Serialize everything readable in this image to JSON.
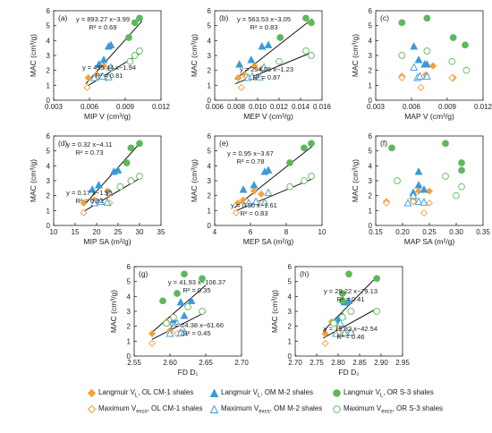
{
  "colors": {
    "orange": "#F2A23A",
    "blue": "#3A9AD9",
    "green": "#5CB85C",
    "line": "#111111",
    "axis": "#222222"
  },
  "legend": [
    {
      "label": "Langmuir V",
      "sub": "L",
      "suffix": ", OL CM-1 shales",
      "marker": "diamond",
      "color": "#F2A23A",
      "filled": true
    },
    {
      "label": "Langmuir V",
      "sub": "L",
      "suffix": ", OM M-2 shales",
      "marker": "triangle",
      "color": "#3A9AD9",
      "filled": true
    },
    {
      "label": "Langmuir V",
      "sub": "L",
      "suffix": ", OR S-3 shales",
      "marker": "circle",
      "color": "#5CB85C",
      "filled": true
    },
    {
      "label": "Maximum V",
      "sub": "excs",
      "suffix": ", OL CM-1 shales",
      "marker": "diamond",
      "color": "#F2A23A",
      "filled": false
    },
    {
      "label": "Maximum V",
      "sub": "excs",
      "suffix": ", OM M-2 shales",
      "marker": "triangle",
      "color": "#3A9AD9",
      "filled": false
    },
    {
      "label": "Maximum V",
      "sub": "excs",
      "suffix": ", OR S-3 shales",
      "marker": "circle",
      "color": "#5CB85C",
      "filled": false
    }
  ],
  "chart_data": [
    {
      "type": "scatter",
      "panel": "(a)",
      "xlabel": "MIP V (cm³/g)",
      "ylabel": "MAC (cm³/g)",
      "xlim": [
        0.003,
        0.012
      ],
      "ylim": [
        0,
        6
      ],
      "xticks": [
        "0.003",
        "0.006",
        "0.009",
        "0.012"
      ],
      "yticks": [
        "0",
        "1",
        "2",
        "3",
        "4",
        "5",
        "6"
      ],
      "series": [
        {
          "key": "L-CM1",
          "x": [
            0.0059,
            0.0066,
            0.0072,
            0.0078
          ],
          "y": [
            1.5,
            1.7,
            2.3,
            2.1
          ]
        },
        {
          "key": "L-M2",
          "x": [
            0.0068,
            0.0072,
            0.0076,
            0.0078
          ],
          "y": [
            2.4,
            2.7,
            3.6,
            3.7
          ]
        },
        {
          "key": "L-S3",
          "x": [
            0.0093,
            0.0098,
            0.0102
          ],
          "y": [
            4.2,
            5.2,
            5.5
          ]
        },
        {
          "key": "M-CM1",
          "x": [
            0.0058,
            0.0067,
            0.0074
          ],
          "y": [
            0.85,
            1.6,
            1.5
          ]
        },
        {
          "key": "M-M2",
          "x": [
            0.0064,
            0.0071,
            0.0076,
            0.0078
          ],
          "y": [
            1.5,
            1.6,
            1.55,
            2.2
          ]
        },
        {
          "key": "M-S3",
          "x": [
            0.0094,
            0.0098,
            0.0102
          ],
          "y": [
            2.6,
            3.0,
            3.3
          ]
        }
      ],
      "fits": [
        {
          "eq": "y = 893.27 x−3.99",
          "r2": "R² = 0.69",
          "x": [
            0.0057,
            0.0104
          ],
          "y": [
            1.102,
            5.3
          ]
        },
        {
          "eq": "y = 495.44 x−1.94",
          "r2": "R² = 0.81",
          "x": [
            0.0057,
            0.0104
          ],
          "y": [
            0.884,
            3.213
          ]
        }
      ]
    },
    {
      "type": "scatter",
      "panel": "(b)",
      "xlabel": "MEP V (cm³/g)",
      "ylabel": "MAC (cm³/g)",
      "xlim": [
        0.006,
        0.016
      ],
      "ylim": [
        0,
        6
      ],
      "xticks": [
        "0.006",
        "0.008",
        "0.010",
        "0.012",
        "0.014",
        "0.016"
      ],
      "yticks": [
        "0",
        "1",
        "2",
        "3",
        "4",
        "5",
        "6"
      ],
      "series": [
        {
          "key": "L-CM1",
          "x": [
            0.0082,
            0.0088,
            0.0097,
            0.0104
          ],
          "y": [
            1.5,
            1.7,
            2.3,
            2.1
          ]
        },
        {
          "key": "L-M2",
          "x": [
            0.0083,
            0.0094,
            0.0104,
            0.011
          ],
          "y": [
            2.4,
            2.7,
            3.6,
            3.7
          ]
        },
        {
          "key": "L-S3",
          "x": [
            0.0121,
            0.0145,
            0.015
          ],
          "y": [
            4.2,
            5.5,
            5.2
          ]
        },
        {
          "key": "M-CM1",
          "x": [
            0.0085,
            0.009,
            0.0097
          ],
          "y": [
            0.85,
            1.6,
            1.5
          ]
        },
        {
          "key": "M-M2",
          "x": [
            0.0091,
            0.0095,
            0.0102,
            0.0106
          ],
          "y": [
            1.5,
            1.6,
            1.55,
            2.2
          ]
        },
        {
          "key": "M-S3",
          "x": [
            0.012,
            0.0145,
            0.015
          ],
          "y": [
            2.6,
            3.3,
            3.0
          ]
        }
      ],
      "fits": [
        {
          "eq": "y = 563.53 x−3.05",
          "r2": "R² = 0.83",
          "x": [
            0.0079,
            0.0151
          ],
          "y": [
            1.402,
            5.459
          ]
        },
        {
          "eq": "y = 294.55 x−1.23",
          "r2": "R² = 0.87",
          "x": [
            0.0079,
            0.0151
          ],
          "y": [
            1.097,
            3.218
          ]
        }
      ]
    },
    {
      "type": "scatter",
      "panel": "(c)",
      "xlabel": "MAP V (cm³/g)",
      "ylabel": "MAC (cm³/g)",
      "xlim": [
        0.003,
        0.012
      ],
      "ylim": [
        0,
        6
      ],
      "xticks": [
        "0.003",
        "0.006",
        "0.009",
        "0.012"
      ],
      "yticks": [
        "0",
        "1",
        "2",
        "3",
        "4",
        "5",
        "6"
      ],
      "series": [
        {
          "key": "L-CM1",
          "x": [
            0.0052,
            0.0072,
            0.0078,
            0.0095
          ],
          "y": [
            1.6,
            1.7,
            2.3,
            1.5
          ]
        },
        {
          "key": "L-M2",
          "x": [
            0.0062,
            0.0066,
            0.0071,
            0.0073
          ],
          "y": [
            3.6,
            2.7,
            2.4,
            2.4
          ]
        },
        {
          "key": "L-S3",
          "x": [
            0.0052,
            0.0073,
            0.0095,
            0.0105
          ],
          "y": [
            5.2,
            5.5,
            4.2,
            3.7
          ]
        },
        {
          "key": "M-CM1",
          "x": [
            0.0052,
            0.0068,
            0.0094
          ],
          "y": [
            1.5,
            0.85,
            1.5
          ]
        },
        {
          "key": "M-M2",
          "x": [
            0.0062,
            0.0065,
            0.0067,
            0.0073
          ],
          "y": [
            2.2,
            1.5,
            1.6,
            1.6
          ]
        },
        {
          "key": "M-S3",
          "x": [
            0.0052,
            0.0073,
            0.0094,
            0.0106
          ],
          "y": [
            3.0,
            3.3,
            2.6,
            2.0
          ]
        }
      ],
      "fits": []
    },
    {
      "type": "scatter",
      "panel": "(d)",
      "xlabel": "MIP SA (m²/g)",
      "ylabel": "MAC (cm³/g)",
      "xlim": [
        10,
        35
      ],
      "ylim": [
        0,
        6
      ],
      "xticks": [
        "10",
        "15",
        "20",
        "25",
        "30",
        "35"
      ],
      "yticks": [
        "0",
        "1",
        "2",
        "3",
        "4",
        "5",
        "6"
      ],
      "series": [
        {
          "key": "L-CM1",
          "x": [
            17,
            19.5,
            22.5,
            23
          ],
          "y": [
            1.5,
            1.7,
            2.3,
            2.1
          ]
        },
        {
          "key": "L-M2",
          "x": [
            19,
            20.5,
            24,
            25
          ],
          "y": [
            2.4,
            2.7,
            3.6,
            3.7
          ]
        },
        {
          "key": "L-S3",
          "x": [
            27,
            28,
            30
          ],
          "y": [
            4.2,
            5.2,
            5.5
          ]
        },
        {
          "key": "M-CM1",
          "x": [
            17,
            20,
            23
          ],
          "y": [
            0.85,
            1.6,
            1.5
          ]
        },
        {
          "key": "M-M2",
          "x": [
            19.5,
            21,
            22.5,
            23
          ],
          "y": [
            1.5,
            1.6,
            1.55,
            2.2
          ]
        },
        {
          "key": "M-S3",
          "x": [
            25.5,
            28,
            30
          ],
          "y": [
            2.6,
            3.0,
            3.3
          ]
        }
      ],
      "fits": [
        {
          "eq": "y = 0.32 x−4.11",
          "r2": "R² = 0.73",
          "x": [
            17,
            30
          ],
          "y": [
            1.33,
            5.49
          ]
        },
        {
          "eq": "y = 0.17 x−1.95",
          "r2": "R² = 0.83",
          "x": [
            17,
            30
          ],
          "y": [
            0.94,
            3.15
          ]
        }
      ]
    },
    {
      "type": "scatter",
      "panel": "(e)",
      "xlabel": "MEP SA (m²/g)",
      "ylabel": "MAC (cm³/g)",
      "xlim": [
        4,
        10
      ],
      "ylim": [
        0,
        6
      ],
      "xticks": [
        "4",
        "6",
        "8",
        "10"
      ],
      "yticks": [
        "0",
        "1",
        "2",
        "3",
        "4",
        "5",
        "6"
      ],
      "series": [
        {
          "key": "L-CM1",
          "x": [
            5.3,
            5.6,
            6.2,
            6.6
          ],
          "y": [
            1.5,
            1.7,
            2.3,
            2.1
          ]
        },
        {
          "key": "L-M2",
          "x": [
            5.6,
            6.2,
            6.8,
            7.0
          ],
          "y": [
            2.4,
            2.7,
            3.6,
            3.7
          ]
        },
        {
          "key": "L-S3",
          "x": [
            8.2,
            9.0,
            9.4
          ],
          "y": [
            4.2,
            5.2,
            5.5
          ]
        },
        {
          "key": "M-CM1",
          "x": [
            5.2,
            5.8,
            6.4
          ],
          "y": [
            0.85,
            1.6,
            1.5
          ]
        },
        {
          "key": "M-M2",
          "x": [
            5.9,
            6.3,
            6.8,
            7.0
          ],
          "y": [
            1.5,
            1.6,
            1.55,
            2.2
          ]
        },
        {
          "key": "M-S3",
          "x": [
            8.2,
            9.0,
            9.4
          ],
          "y": [
            2.6,
            3.0,
            3.3
          ]
        }
      ],
      "fits": [
        {
          "eq": "y = 0.95 x−3.67",
          "r2": "R² = 0.78",
          "x": [
            5.1,
            9.5
          ],
          "y": [
            1.175,
            5.355
          ]
        },
        {
          "eq": "y = 0.50 x−1.61",
          "r2": "R² = 0.83",
          "x": [
            5.1,
            9.5
          ],
          "y": [
            0.94,
            3.14
          ]
        }
      ]
    },
    {
      "type": "scatter",
      "panel": "(f)",
      "xlabel": "MAP SA (m²/g)",
      "ylabel": "MAC (cm³/g)",
      "xlim": [
        0.15,
        0.35
      ],
      "ylim": [
        0,
        6
      ],
      "xticks": [
        "0.15",
        "0.20",
        "0.25",
        "0.30",
        "0.35"
      ],
      "yticks": [
        "0",
        "1",
        "2",
        "3",
        "4",
        "5",
        "6"
      ],
      "series": [
        {
          "key": "L-CM1",
          "x": [
            0.17,
            0.22,
            0.23,
            0.25
          ],
          "y": [
            1.6,
            1.7,
            2.3,
            2.3
          ]
        },
        {
          "key": "L-M2",
          "x": [
            0.22,
            0.23,
            0.23,
            0.24
          ],
          "y": [
            2.2,
            2.7,
            3.6,
            2.4
          ]
        },
        {
          "key": "L-S3",
          "x": [
            0.18,
            0.28,
            0.31,
            0.31
          ],
          "y": [
            5.2,
            5.5,
            4.2,
            3.7
          ]
        },
        {
          "key": "M-CM1",
          "x": [
            0.17,
            0.22,
            0.24,
            0.25
          ],
          "y": [
            1.5,
            1.6,
            0.85,
            1.5
          ]
        },
        {
          "key": "M-M2",
          "x": [
            0.21,
            0.22,
            0.23,
            0.24
          ],
          "y": [
            1.5,
            2.0,
            1.6,
            1.55
          ]
        },
        {
          "key": "M-S3",
          "x": [
            0.19,
            0.28,
            0.3,
            0.31
          ],
          "y": [
            3.0,
            3.3,
            2.0,
            2.6
          ]
        }
      ],
      "fits": []
    },
    {
      "type": "scatter",
      "panel": "(g)",
      "xlabel": "FD D₁",
      "ylabel": "MAC (cm³/g)",
      "xlim": [
        2.55,
        2.7
      ],
      "ylim": [
        0,
        6
      ],
      "xticks": [
        "2.55",
        "2.60",
        "2.65",
        "2.70"
      ],
      "yticks": [
        "0",
        "1",
        "2",
        "3",
        "4",
        "5",
        "6"
      ],
      "series": [
        {
          "key": "L-CM1",
          "x": [
            2.575,
            2.595,
            2.6,
            2.615
          ],
          "y": [
            1.5,
            2.3,
            1.7,
            1.6
          ]
        },
        {
          "key": "L-M2",
          "x": [
            2.605,
            2.615,
            2.62,
            2.63
          ],
          "y": [
            2.4,
            3.6,
            2.7,
            3.7
          ]
        },
        {
          "key": "L-S3",
          "x": [
            2.59,
            2.61,
            2.62,
            2.645
          ],
          "y": [
            3.7,
            4.2,
            5.5,
            5.2
          ]
        },
        {
          "key": "M-CM1",
          "x": [
            2.575,
            2.6,
            2.61
          ],
          "y": [
            0.85,
            1.6,
            1.5
          ]
        },
        {
          "key": "M-M2",
          "x": [
            2.6,
            2.61,
            2.615,
            2.62
          ],
          "y": [
            1.5,
            2.2,
            1.55,
            1.6
          ]
        },
        {
          "key": "M-S3",
          "x": [
            2.595,
            2.605,
            2.625,
            2.645
          ],
          "y": [
            2.2,
            2.6,
            3.3,
            3.0
          ]
        }
      ],
      "fits": [
        {
          "eq": "y = 41.93 x−106.37",
          "r2": "R² = 0.35",
          "x": [
            2.575,
            2.65
          ],
          "y": [
            1.6,
            4.745
          ]
        },
        {
          "eq": "y = 24.38 x−61.66",
          "r2": "R² = 0.45",
          "x": [
            2.575,
            2.65
          ],
          "y": [
            1.119,
            2.948
          ]
        }
      ]
    },
    {
      "type": "scatter",
      "panel": "(h)",
      "xlabel": "FD D₂",
      "ylabel": "MAC (cm³/g)",
      "xlim": [
        2.7,
        2.95
      ],
      "ylim": [
        0,
        6
      ],
      "xticks": [
        "2.70",
        "2.75",
        "2.80",
        "2.85",
        "2.90",
        "2.95"
      ],
      "yticks": [
        "0",
        "1",
        "2",
        "3",
        "4",
        "5",
        "6"
      ],
      "series": [
        {
          "key": "L-CM1",
          "x": [
            2.77,
            2.785,
            2.8,
            2.83
          ],
          "y": [
            1.5,
            2.3,
            1.7,
            1.6
          ]
        },
        {
          "key": "L-M2",
          "x": [
            2.8,
            2.81,
            2.815,
            2.825
          ],
          "y": [
            2.4,
            2.7,
            3.6,
            3.7
          ]
        },
        {
          "key": "L-S3",
          "x": [
            2.81,
            2.81,
            2.825,
            2.89
          ],
          "y": [
            3.7,
            4.2,
            5.5,
            5.2
          ]
        },
        {
          "key": "M-CM1",
          "x": [
            2.77,
            2.8,
            2.815
          ],
          "y": [
            0.85,
            1.6,
            1.5
          ]
        },
        {
          "key": "M-M2",
          "x": [
            2.795,
            2.805,
            2.815,
            2.83
          ],
          "y": [
            1.5,
            2.2,
            1.55,
            1.6
          ]
        },
        {
          "key": "M-S3",
          "x": [
            2.79,
            2.81,
            2.83,
            2.89
          ],
          "y": [
            2.2,
            2.6,
            3.0,
            3.0
          ]
        }
      ],
      "fits": [
        {
          "eq": "y = 29.22 x−79.13",
          "r2": "R² = 0.41",
          "x": [
            2.765,
            2.89
          ],
          "y": [
            1.663,
            5.316
          ]
        },
        {
          "eq": "y = 15.82 x−42.54",
          "r2": "R² = 0.46",
          "x": [
            2.765,
            2.89
          ],
          "y": [
            1.202,
            3.18
          ]
        }
      ]
    }
  ]
}
